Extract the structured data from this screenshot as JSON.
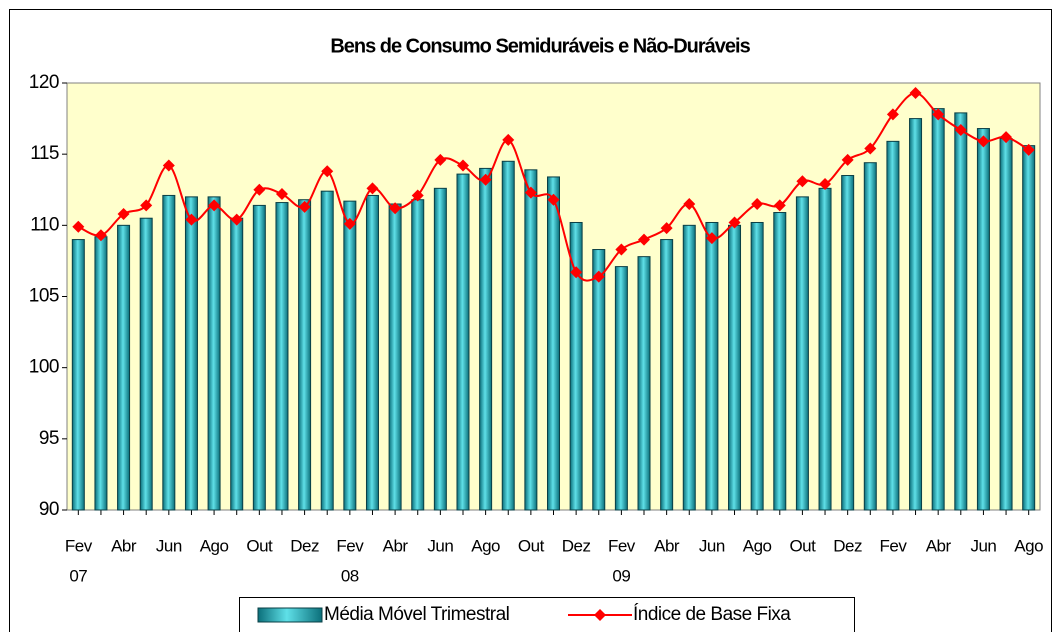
{
  "chart_data": {
    "type": "bar_line",
    "title": "Bens de Consumo Semiduráveis e Não-Duráveis",
    "categories": [
      "Fev",
      null,
      "Abr",
      null,
      "Jun",
      null,
      "Ago",
      null,
      "Out",
      null,
      "Dez",
      null,
      "Fev",
      null,
      "Abr",
      null,
      "Jun",
      null,
      "Ago",
      null,
      "Out",
      null,
      "Dez",
      null,
      "Fev",
      null,
      "Abr",
      null,
      "Jun",
      null,
      "Ago",
      null,
      "Out",
      null,
      "Dez",
      null,
      "Fev",
      null,
      "Abr",
      null,
      "Jun",
      null,
      "Ago"
    ],
    "years": [
      "07",
      null,
      null,
      null,
      null,
      null,
      null,
      null,
      null,
      null,
      null,
      null,
      "08",
      null,
      null,
      null,
      null,
      null,
      null,
      null,
      null,
      null,
      null,
      null,
      "09",
      null,
      null,
      null,
      null,
      null,
      null,
      null,
      null,
      null,
      null,
      null,
      null,
      null,
      null,
      null,
      null,
      null,
      null
    ],
    "series": [
      {
        "name": "Média Móvel Trimestral",
        "type": "bar",
        "color": "#33cccc",
        "values": [
          109.0,
          109.2,
          110.0,
          110.5,
          112.1,
          112.0,
          112.0,
          110.5,
          111.4,
          111.6,
          111.8,
          112.4,
          111.7,
          112.1,
          111.5,
          111.8,
          112.6,
          113.6,
          114.0,
          114.5,
          113.9,
          113.4,
          110.2,
          108.3,
          107.1,
          107.8,
          109.0,
          110.0,
          110.2,
          110.0,
          110.2,
          110.9,
          112.0,
          112.6,
          113.5,
          114.4,
          115.9,
          117.5,
          118.2,
          117.9,
          116.8,
          116.1,
          115.6
        ]
      },
      {
        "name": "Índice de Base Fixa",
        "type": "line",
        "color": "#ff0000",
        "values": [
          109.9,
          109.3,
          110.8,
          111.4,
          114.2,
          110.4,
          111.4,
          110.4,
          112.5,
          112.2,
          111.3,
          113.8,
          110.1,
          112.6,
          111.2,
          112.1,
          114.6,
          114.2,
          113.2,
          116.0,
          112.3,
          111.8,
          106.7,
          106.4,
          108.3,
          109.0,
          109.8,
          111.5,
          109.1,
          110.2,
          111.5,
          111.4,
          113.1,
          112.9,
          114.6,
          115.4,
          117.8,
          119.3,
          117.8,
          116.7,
          115.9,
          116.2,
          115.3
        ]
      }
    ],
    "ylim": [
      90,
      120
    ],
    "yticks": [
      90,
      95,
      100,
      105,
      110,
      115,
      120
    ],
    "grid": false,
    "plot_background": "#ffffcc"
  }
}
